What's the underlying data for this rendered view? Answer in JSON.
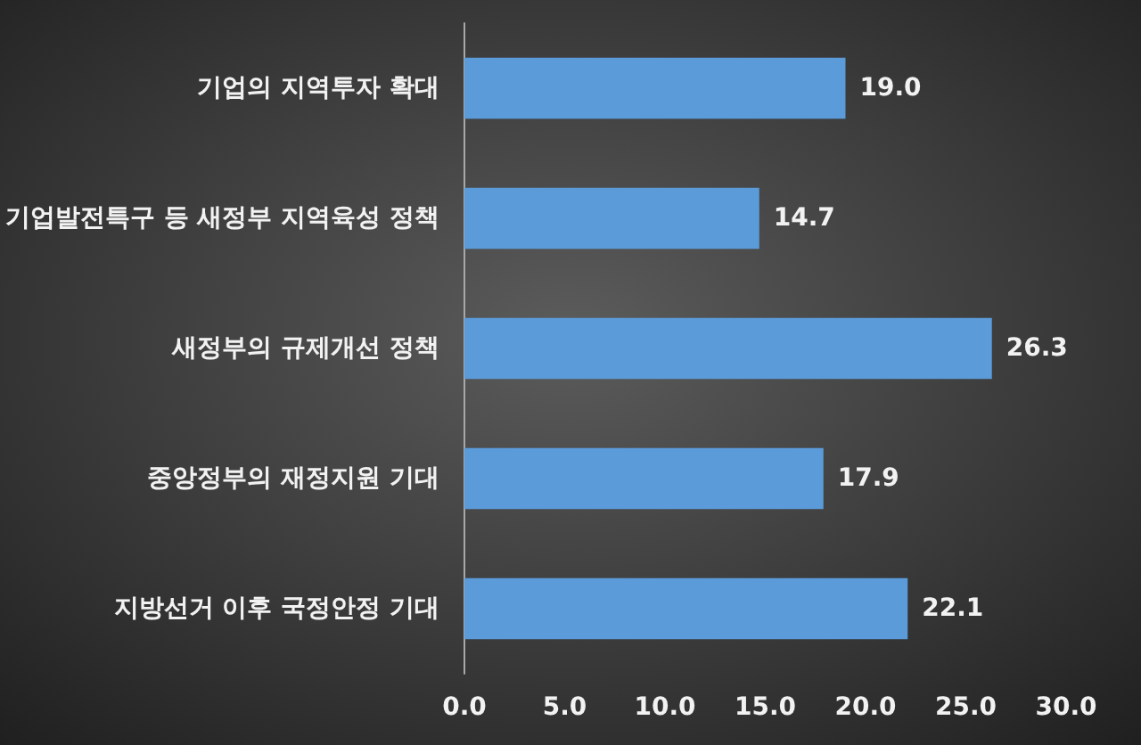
{
  "chart_data": {
    "type": "bar",
    "orientation": "horizontal",
    "categories": [
      "기업의 지역투자 확대",
      "기업발전특구 등 새정부 지역육성 정책",
      "새정부의 규제개선 정책",
      "중앙정부의 재정지원 기대",
      "지방선거 이후 국정안정 기대"
    ],
    "values": [
      19.0,
      14.7,
      26.3,
      17.9,
      22.1
    ],
    "color": "#5b9bd9",
    "value_labels": [
      "19.0",
      "14.7",
      "26.3",
      "17.9",
      "22.1"
    ],
    "xlim": [
      0,
      30
    ],
    "xticks": [
      {
        "value": 0,
        "label": "0.0"
      },
      {
        "value": 5,
        "label": "5.0"
      },
      {
        "value": 10,
        "label": "10.0"
      },
      {
        "value": 15,
        "label": "15.0"
      },
      {
        "value": 20,
        "label": "20.0"
      },
      {
        "value": 25,
        "label": "25.0"
      },
      {
        "value": 30,
        "label": "30.0"
      }
    ]
  }
}
